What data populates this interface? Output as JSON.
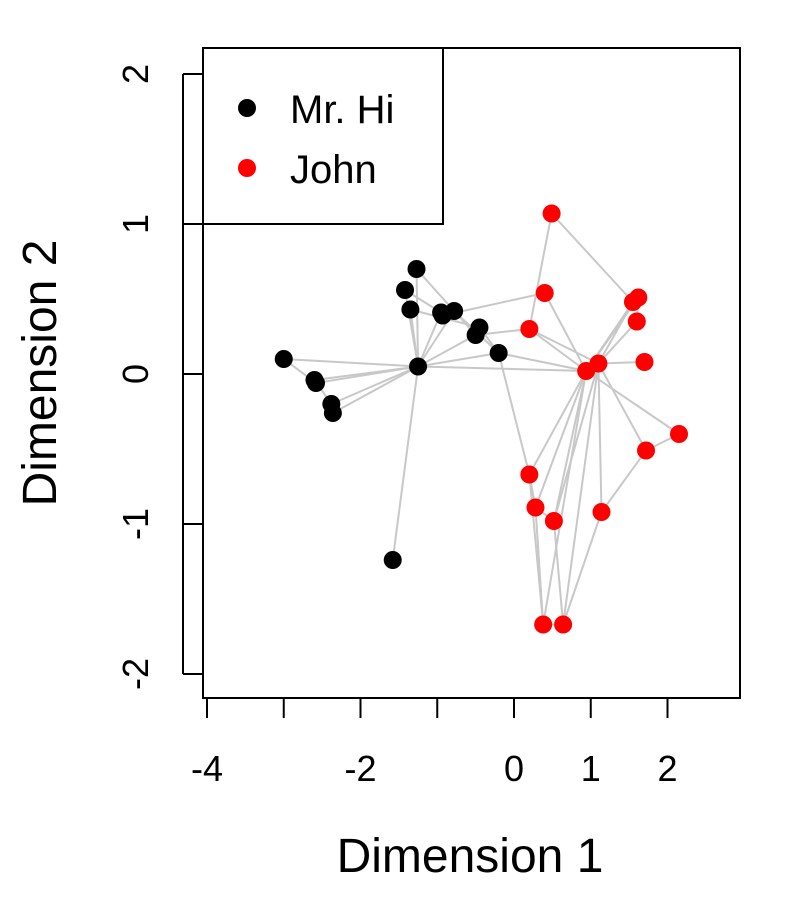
{
  "chart_data": {
    "type": "scatter",
    "xlabel": "Dimension 1",
    "ylabel": "Dimension 2",
    "xlim": [
      -4,
      2.95
    ],
    "ylim": [
      -2.15,
      2.15
    ],
    "xticks": [
      {
        "value": -4,
        "label": "-4"
      },
      {
        "value": -3,
        "label": ""
      },
      {
        "value": -2,
        "label": "-2"
      },
      {
        "value": -1,
        "label": ""
      },
      {
        "value": 0,
        "label": "0"
      },
      {
        "value": 1,
        "label": "1"
      },
      {
        "value": 2,
        "label": "2"
      }
    ],
    "yticks": [
      {
        "value": -2,
        "label": "-2"
      },
      {
        "value": -1,
        "label": "-1"
      },
      {
        "value": 0,
        "label": "0"
      },
      {
        "value": 1,
        "label": "1"
      },
      {
        "value": 2,
        "label": "2"
      }
    ],
    "grid": false,
    "legend_position": "top-left",
    "edge_color": "#c8c8c8",
    "series": [
      {
        "name": "Mr. Hi",
        "color": "#000000",
        "points": [
          [
            -3.0,
            0.1
          ],
          [
            -2.6,
            -0.04
          ],
          [
            -2.58,
            -0.06
          ],
          [
            -2.38,
            -0.2
          ],
          [
            -2.36,
            -0.26
          ],
          [
            -1.58,
            -1.24
          ],
          [
            -1.25,
            0.05
          ],
          [
            -1.27,
            0.7
          ],
          [
            -1.42,
            0.56
          ],
          [
            -1.35,
            0.43
          ],
          [
            -0.95,
            0.41
          ],
          [
            -0.93,
            0.39
          ],
          [
            -0.78,
            0.42
          ],
          [
            -0.5,
            0.26
          ],
          [
            -0.45,
            0.31
          ],
          [
            -0.2,
            0.14
          ]
        ]
      },
      {
        "name": "John",
        "color": "#ff0000",
        "points": [
          [
            0.49,
            1.07
          ],
          [
            0.4,
            0.54
          ],
          [
            0.2,
            0.3
          ],
          [
            0.94,
            0.02
          ],
          [
            1.1,
            0.07
          ],
          [
            1.55,
            0.48
          ],
          [
            1.62,
            0.51
          ],
          [
            1.6,
            0.35
          ],
          [
            1.7,
            0.08
          ],
          [
            2.15,
            -0.4
          ],
          [
            1.72,
            -0.51
          ],
          [
            0.2,
            -0.67
          ],
          [
            0.28,
            -0.89
          ],
          [
            0.52,
            -0.98
          ],
          [
            1.14,
            -0.92
          ],
          [
            0.38,
            -1.67
          ],
          [
            0.64,
            -1.67
          ]
        ]
      }
    ],
    "edges": [
      [
        [
          -3.0,
          0.1
        ],
        [
          -1.25,
          0.05
        ]
      ],
      [
        [
          -2.6,
          -0.04
        ],
        [
          -1.25,
          0.05
        ]
      ],
      [
        [
          -2.58,
          -0.06
        ],
        [
          -1.25,
          0.05
        ]
      ],
      [
        [
          -2.38,
          -0.2
        ],
        [
          -1.25,
          0.05
        ]
      ],
      [
        [
          -2.36,
          -0.26
        ],
        [
          -1.25,
          0.05
        ]
      ],
      [
        [
          -2.6,
          -0.04
        ],
        [
          -2.38,
          -0.2
        ]
      ],
      [
        [
          -3.0,
          0.1
        ],
        [
          -2.58,
          -0.06
        ]
      ],
      [
        [
          -1.58,
          -1.24
        ],
        [
          -1.25,
          0.05
        ]
      ],
      [
        [
          -1.27,
          0.7
        ],
        [
          -1.25,
          0.05
        ]
      ],
      [
        [
          -1.42,
          0.56
        ],
        [
          -1.25,
          0.05
        ]
      ],
      [
        [
          -1.35,
          0.43
        ],
        [
          -1.25,
          0.05
        ]
      ],
      [
        [
          -0.95,
          0.41
        ],
        [
          -1.25,
          0.05
        ]
      ],
      [
        [
          -0.78,
          0.42
        ],
        [
          -1.25,
          0.05
        ]
      ],
      [
        [
          -0.5,
          0.26
        ],
        [
          -1.25,
          0.05
        ]
      ],
      [
        [
          -0.2,
          0.14
        ],
        [
          -1.25,
          0.05
        ]
      ],
      [
        [
          -1.27,
          0.7
        ],
        [
          -0.5,
          0.26
        ]
      ],
      [
        [
          -1.42,
          0.56
        ],
        [
          -0.95,
          0.41
        ]
      ],
      [
        [
          -1.35,
          0.43
        ],
        [
          -0.45,
          0.31
        ]
      ],
      [
        [
          -0.93,
          0.39
        ],
        [
          0.4,
          0.54
        ]
      ],
      [
        [
          -0.78,
          0.42
        ],
        [
          -0.2,
          0.14
        ]
      ],
      [
        [
          -0.45,
          0.31
        ],
        [
          -0.2,
          0.14
        ]
      ],
      [
        [
          -0.2,
          0.14
        ],
        [
          0.94,
          0.02
        ]
      ],
      [
        [
          -0.2,
          0.14
        ],
        [
          0.2,
          -0.67
        ]
      ],
      [
        [
          -1.25,
          0.05
        ],
        [
          0.94,
          0.02
        ]
      ],
      [
        [
          -0.5,
          0.26
        ],
        [
          0.2,
          0.3
        ]
      ],
      [
        [
          0.49,
          1.07
        ],
        [
          0.2,
          0.3
        ]
      ],
      [
        [
          0.49,
          1.07
        ],
        [
          1.55,
          0.48
        ]
      ],
      [
        [
          0.4,
          0.54
        ],
        [
          0.94,
          0.02
        ]
      ],
      [
        [
          0.2,
          0.3
        ],
        [
          0.94,
          0.02
        ]
      ],
      [
        [
          0.2,
          0.3
        ],
        [
          1.1,
          0.07
        ]
      ],
      [
        [
          0.94,
          0.02
        ],
        [
          1.55,
          0.48
        ]
      ],
      [
        [
          0.94,
          0.02
        ],
        [
          1.62,
          0.51
        ]
      ],
      [
        [
          1.1,
          0.07
        ],
        [
          1.6,
          0.35
        ]
      ],
      [
        [
          1.1,
          0.07
        ],
        [
          1.55,
          0.48
        ]
      ],
      [
        [
          1.1,
          0.07
        ],
        [
          1.7,
          0.08
        ]
      ],
      [
        [
          1.1,
          0.07
        ],
        [
          1.72,
          -0.51
        ]
      ],
      [
        [
          0.94,
          0.02
        ],
        [
          2.15,
          -0.4
        ]
      ],
      [
        [
          0.94,
          0.02
        ],
        [
          0.2,
          -0.67
        ]
      ],
      [
        [
          0.94,
          0.02
        ],
        [
          0.28,
          -0.89
        ]
      ],
      [
        [
          0.94,
          0.02
        ],
        [
          0.52,
          -0.98
        ]
      ],
      [
        [
          0.94,
          0.02
        ],
        [
          0.38,
          -1.67
        ]
      ],
      [
        [
          1.1,
          0.07
        ],
        [
          1.14,
          -0.92
        ]
      ],
      [
        [
          1.1,
          0.07
        ],
        [
          0.52,
          -0.98
        ]
      ],
      [
        [
          1.1,
          0.07
        ],
        [
          0.64,
          -1.67
        ]
      ],
      [
        [
          0.2,
          -0.67
        ],
        [
          0.28,
          -0.89
        ]
      ],
      [
        [
          0.28,
          -0.89
        ],
        [
          0.52,
          -0.98
        ]
      ],
      [
        [
          0.28,
          -0.89
        ],
        [
          0.38,
          -1.67
        ]
      ],
      [
        [
          0.52,
          -0.98
        ],
        [
          0.64,
          -1.67
        ]
      ],
      [
        [
          0.38,
          -1.67
        ],
        [
          0.64,
          -1.67
        ]
      ],
      [
        [
          1.14,
          -0.92
        ],
        [
          0.64,
          -1.67
        ]
      ],
      [
        [
          1.14,
          -0.92
        ],
        [
          1.72,
          -0.51
        ]
      ],
      [
        [
          1.72,
          -0.51
        ],
        [
          2.15,
          -0.4
        ]
      ],
      [
        [
          1.55,
          0.48
        ],
        [
          1.62,
          0.51
        ]
      ],
      [
        [
          1.6,
          0.35
        ],
        [
          1.62,
          0.51
        ]
      ],
      [
        [
          0.2,
          -0.67
        ],
        [
          0.38,
          -1.67
        ]
      ]
    ]
  }
}
